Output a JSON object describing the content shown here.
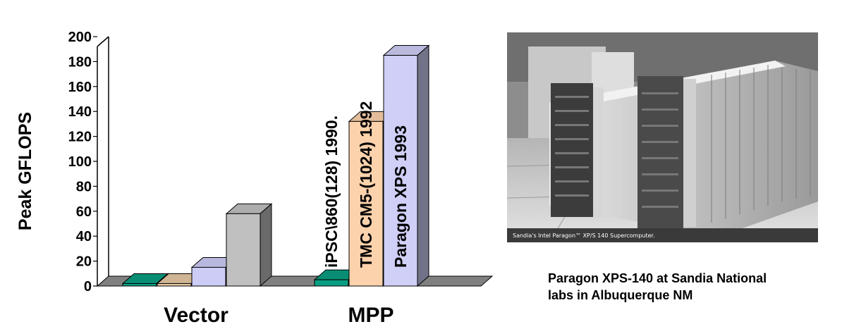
{
  "chart_data": {
    "type": "bar",
    "ylabel": "Peak GFLOPS",
    "ylim": [
      0,
      200
    ],
    "yticks": [
      0,
      20,
      40,
      60,
      80,
      100,
      120,
      140,
      160,
      180,
      200
    ],
    "categories": [
      "Vector",
      "MPP"
    ],
    "groups": [
      {
        "category": "Vector",
        "bars": [
          {
            "value": 2,
            "color": "#0a9e82"
          },
          {
            "value": 2,
            "color": "#e6c9a3"
          },
          {
            "value": 15,
            "color": "#ccccf7"
          },
          {
            "value": 58,
            "color": "#c0c0c0"
          }
        ]
      },
      {
        "category": "MPP",
        "bars": [
          {
            "value": 5,
            "color": "#0a9e82",
            "label": "iPSC\\860(128) 1990."
          },
          {
            "value": 132,
            "color": "#fcd2ac",
            "label": "TMC CM5-(1024) 1992"
          },
          {
            "value": 185,
            "color": "#cfcff7",
            "label": "Paragon XPS 1993"
          }
        ]
      }
    ],
    "grid": false,
    "style": "3d"
  },
  "photo": {
    "caption_inner": "Sandia's Intel Paragon™ XP/S 140 Supercomputer."
  },
  "caption": "Paragon XPS-140 at Sandia National labs in Albuquerque NM"
}
